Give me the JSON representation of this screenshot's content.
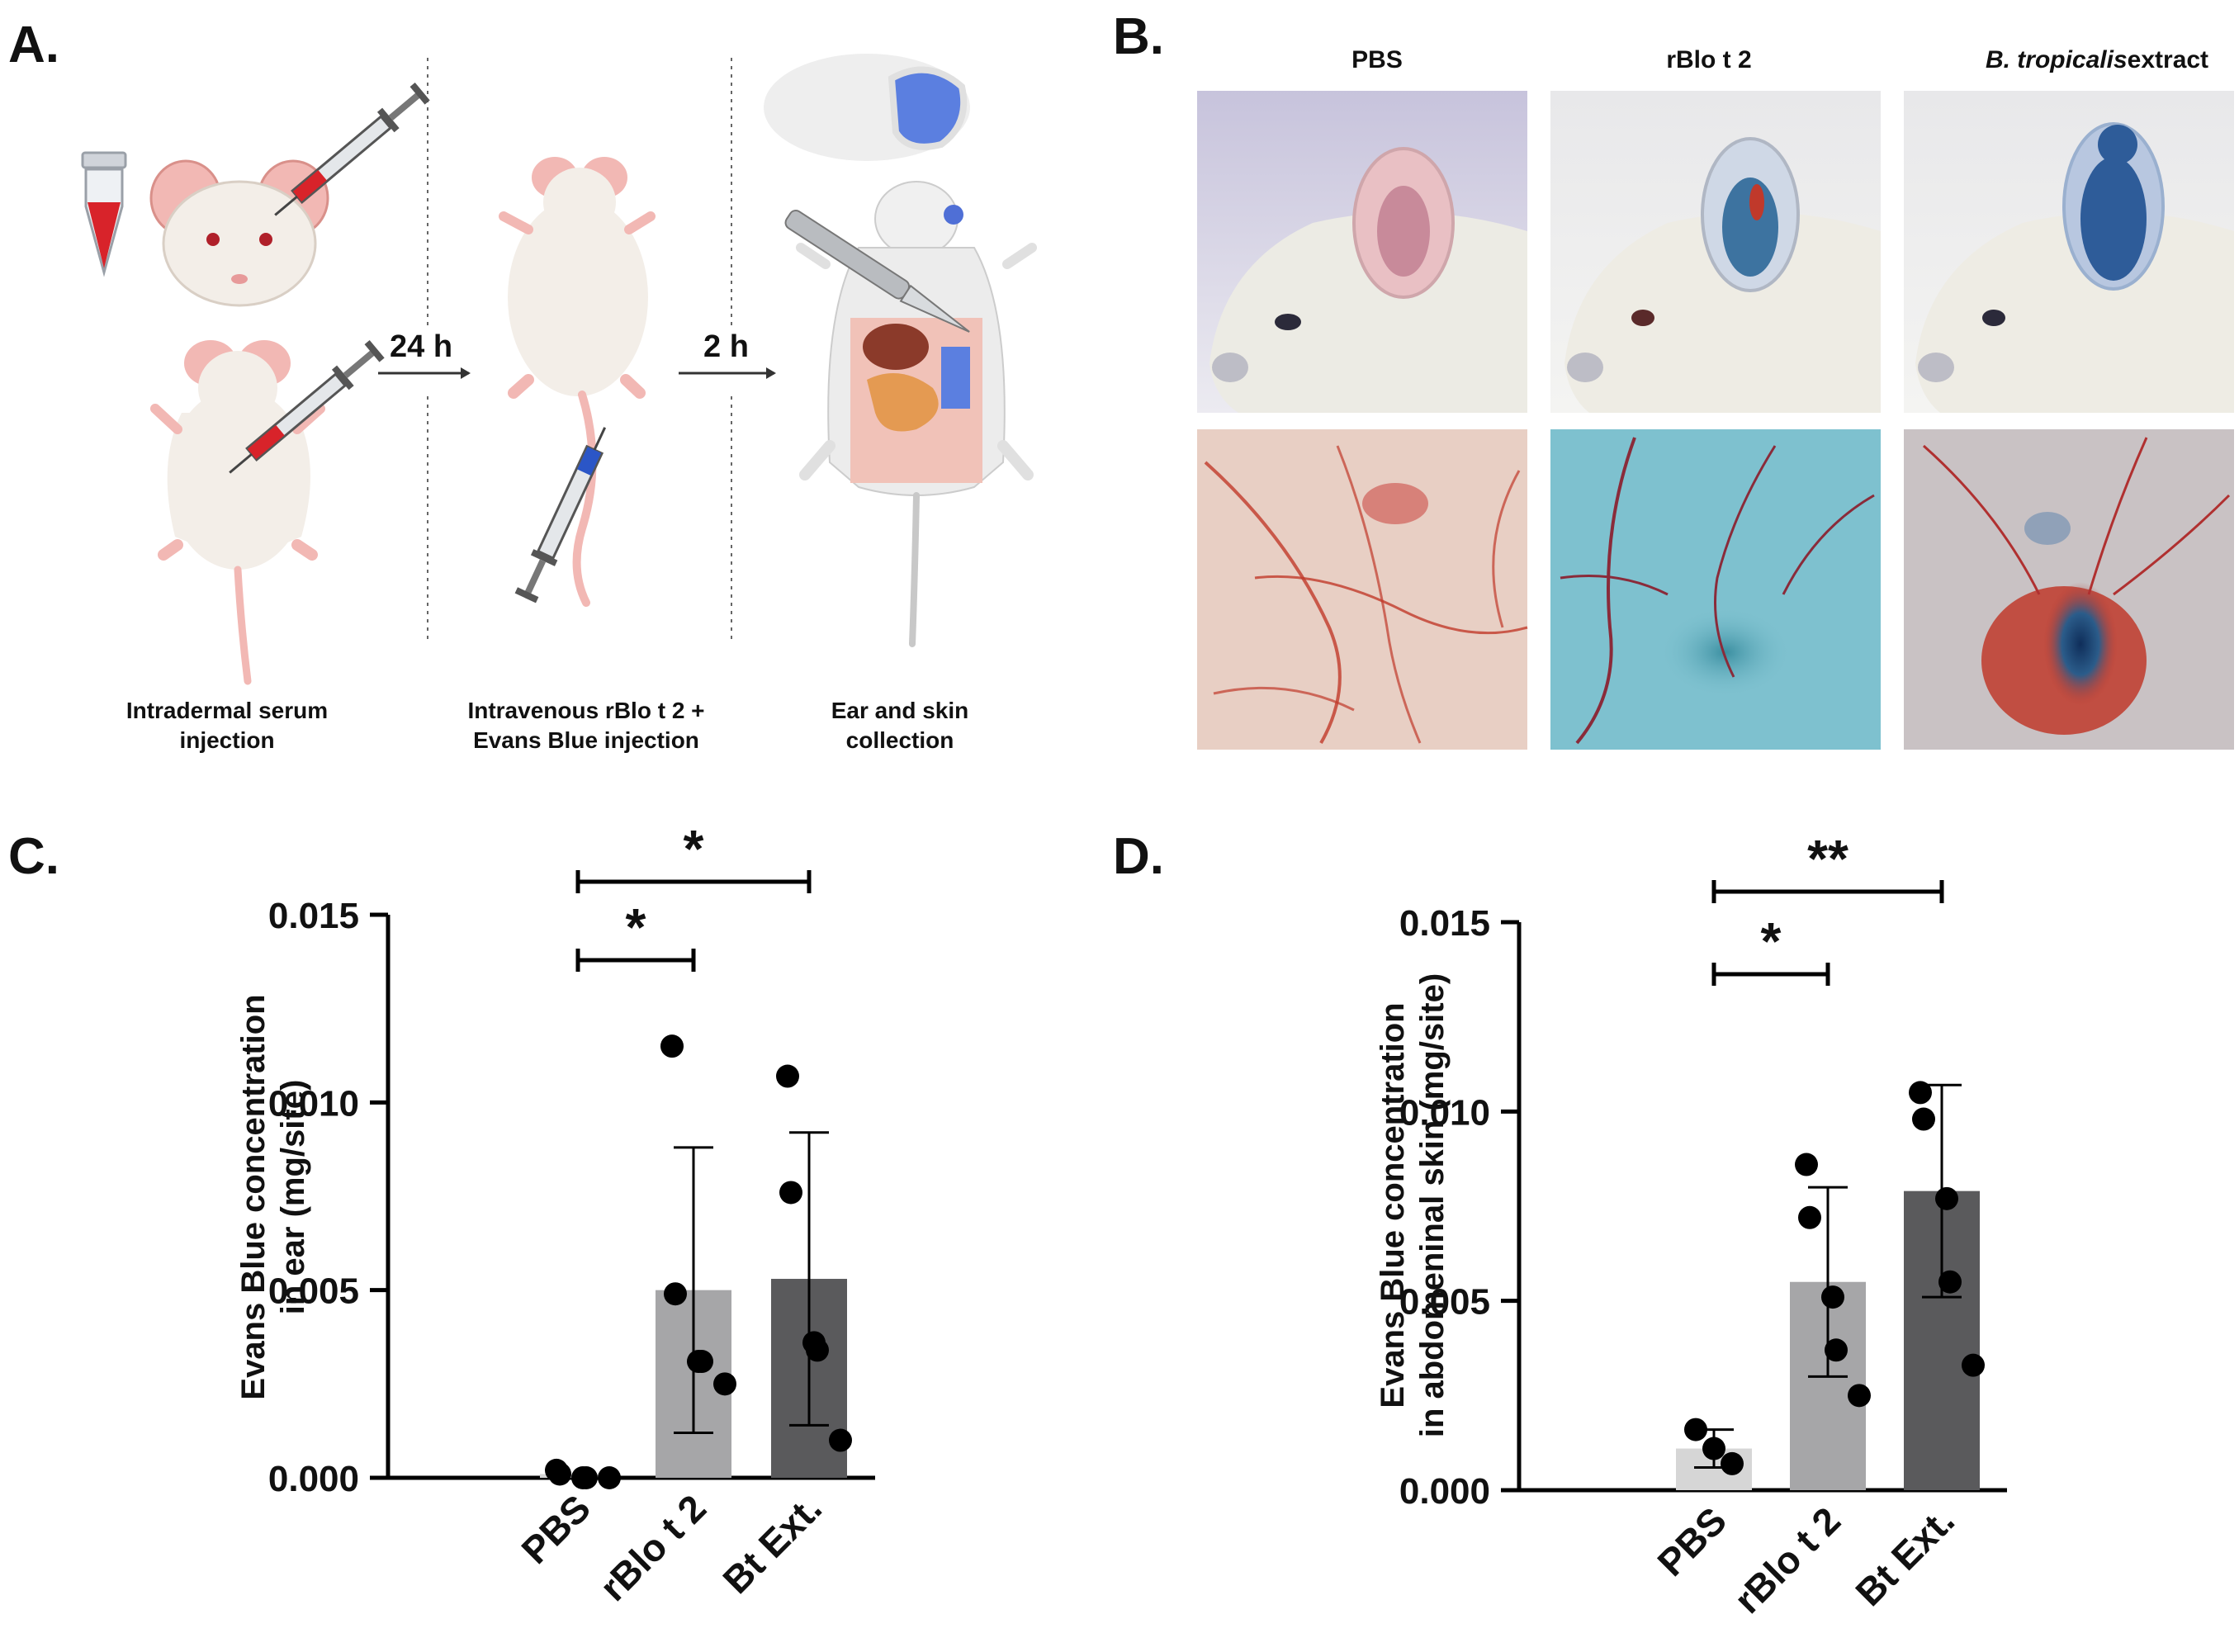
{
  "panel_a": {
    "label": "A.",
    "arrow1_label": "24 h",
    "arrow2_label": "2 h",
    "step1": [
      "Intradermal serum",
      "injection"
    ],
    "step2": [
      "Intravenous rBlo t 2 +",
      "Evans Blue injection"
    ],
    "step3": [
      "Ear and skin",
      "collection"
    ]
  },
  "panel_b": {
    "label": "B.",
    "columns": [
      "PBS",
      "rBlo t 2",
      "B. tropicalis",
      "extract"
    ],
    "colors": {
      "mouse_fur": "#ece9df",
      "ear_pbs": "#e8b8b8",
      "ear_dye": "#2a5aa0",
      "skin_pbs": "#e6c7bd",
      "skin_blue": "#7ec1cf",
      "vessel": "#c0392b"
    }
  },
  "chart_data": [
    {
      "panel": "C.",
      "type": "bar",
      "ylabel": [
        "Evans Blue concentration",
        "in ear (mg/site)"
      ],
      "ylim": [
        0,
        0.015
      ],
      "yticks": [
        "0.000",
        "0.005",
        "0.010",
        "0.015"
      ],
      "categories": [
        "PBS",
        "rBlo t 2",
        "Bt Ext."
      ],
      "means": [
        0.0001,
        0.005,
        0.0053
      ],
      "errors": [
        0,
        0.0038,
        0.0039
      ],
      "bar_colors": [
        "#d6d6d6",
        "#a6a6a8",
        "#5a5a5c"
      ],
      "points": [
        [
          0.0002,
          0.0001,
          0.0,
          0.0,
          0.0
        ],
        [
          0.0115,
          0.0049,
          0.0031,
          0.0031,
          0.0025
        ],
        [
          0.0107,
          0.0076,
          0.0036,
          0.0034,
          0.001
        ]
      ],
      "significance": [
        {
          "from": 0,
          "to": 1,
          "label": "*"
        },
        {
          "from": 0,
          "to": 2,
          "label": "*"
        }
      ]
    },
    {
      "panel": "D.",
      "type": "bar",
      "ylabel": [
        "Evans Blue concentration",
        "in abdomeninal skin (mg/site)"
      ],
      "ylim": [
        0,
        0.015
      ],
      "yticks": [
        "0.000",
        "0.005",
        "0.010",
        "0.015"
      ],
      "categories": [
        "PBS",
        "rBlo t 2",
        "Bt Ext."
      ],
      "means": [
        0.0011,
        0.0055,
        0.0079
      ],
      "errors": [
        0.0005,
        0.0025,
        0.0028
      ],
      "bar_colors": [
        "#d6d6d6",
        "#a6a6a8",
        "#5a5a5c"
      ],
      "points": [
        [
          0.0016,
          0.0011,
          0.0007
        ],
        [
          0.0086,
          0.0072,
          0.0051,
          0.0037,
          0.0025
        ],
        [
          0.0105,
          0.0098,
          0.0077,
          0.0055,
          0.0033
        ]
      ],
      "significance": [
        {
          "from": 0,
          "to": 1,
          "label": "*"
        },
        {
          "from": 0,
          "to": 2,
          "label": "**"
        }
      ]
    }
  ]
}
